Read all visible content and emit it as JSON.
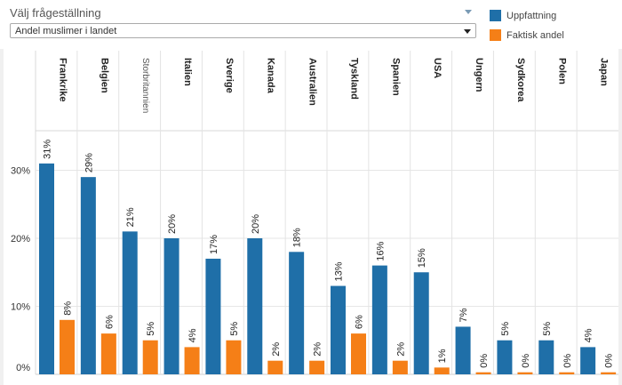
{
  "control": {
    "title": "Välj frågeställning",
    "selected": "Andel muslimer i landet"
  },
  "colors": {
    "perceived": "#1f6fa8",
    "actual": "#f57f17",
    "grid": "#e6e6e6"
  },
  "chart_data": {
    "type": "bar",
    "categories": [
      "Frankrike",
      "Belgien",
      "Storbritannien",
      "Italien",
      "Sverige",
      "Kanada",
      "Australien",
      "Tyskland",
      "Spanien",
      "USA",
      "Ungern",
      "Sydkorea",
      "Polen",
      "Japan"
    ],
    "series": [
      {
        "name": "Uppfattning",
        "color": "#1f6fa8",
        "values": [
          31,
          29,
          21,
          20,
          17,
          20,
          18,
          13,
          16,
          15,
          7,
          5,
          5,
          4
        ]
      },
      {
        "name": "Faktisk andel",
        "color": "#f57f17",
        "values": [
          8,
          6,
          5,
          4,
          5,
          2,
          2,
          6,
          2,
          1,
          0.3,
          0.3,
          0.3,
          0.3
        ]
      }
    ],
    "labels": [
      [
        "31%",
        "29%",
        "21%",
        "20%",
        "17%",
        "20%",
        "18%",
        "13%",
        "16%",
        "15%",
        "7%",
        "5%",
        "5%",
        "4%"
      ],
      [
        "8%",
        "6%",
        "5%",
        "4%",
        "5%",
        "2%",
        "2%",
        "6%",
        "2%",
        "1%",
        "0%",
        "0%",
        "0%",
        "0%"
      ]
    ],
    "yticks": [
      0,
      10,
      20,
      30
    ],
    "ytick_labels": [
      "0%",
      "10%",
      "20%",
      "30%"
    ],
    "ylim": [
      0,
      33
    ],
    "legend_position": "top-right",
    "grid": true
  }
}
